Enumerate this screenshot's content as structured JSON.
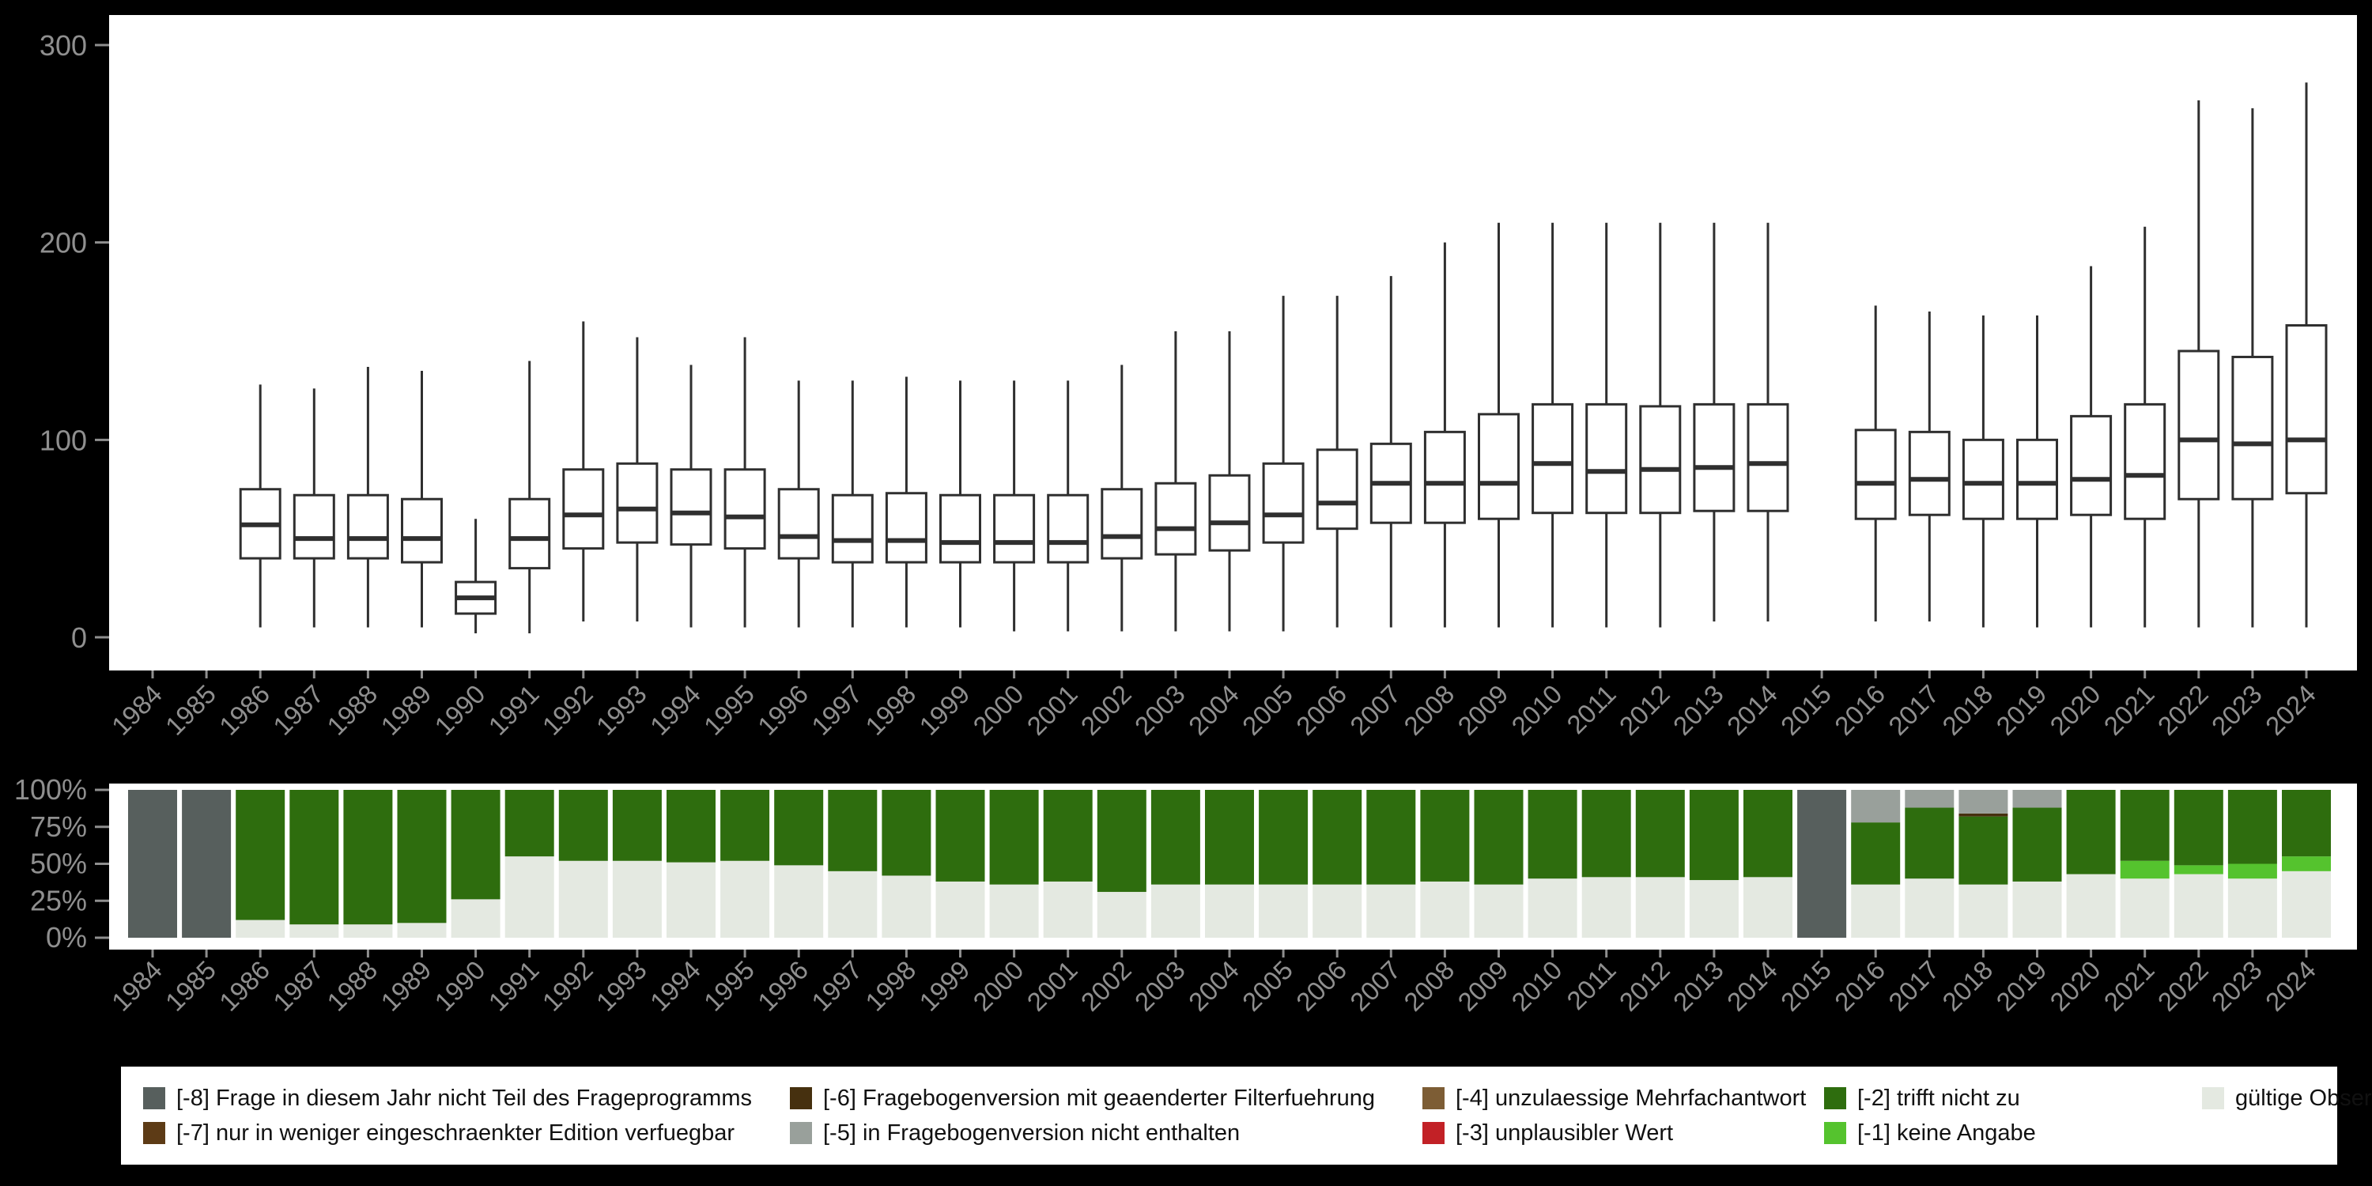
{
  "colors": {
    "background": "#000000",
    "panel": "#ffffff",
    "axis_text": "#8f8f8f",
    "box_stroke": "#2f2f2f",
    "legend_text": "#111111"
  },
  "legend": {
    "rows": [
      [
        {
          "label": "[-8] Frage in diesem Jahr nicht Teil des Frageprogramms",
          "color": "#575f5d"
        },
        {
          "label": "[-6] Fragebogenversion mit geaenderter Filterfuehrung",
          "color": "#46300f"
        },
        {
          "label": "[-4] unzulaessige Mehrfachantwort",
          "color": "#7d5d35"
        },
        {
          "label": "[-2] trifft nicht zu",
          "color": "#2e6d0e"
        },
        {
          "label": "gültige Observationen",
          "color": "#e4e9e1"
        }
      ],
      [
        {
          "label": "[-7] nur in weniger eingeschraenkter Edition verfuegbar",
          "color": "#5d3b16"
        },
        {
          "label": "[-5] in Fragebogenversion nicht enthalten",
          "color": "#99a09b"
        },
        {
          "label": "[-3] unplausibler Wert",
          "color": "#c22126"
        },
        {
          "label": "[-1] keine Angabe",
          "color": "#55c32e"
        }
      ]
    ]
  },
  "chart_data": [
    {
      "type": "boxplot",
      "title": "",
      "xlabel": "",
      "ylabel": "",
      "ylim": [
        0,
        300
      ],
      "yticks": [
        0,
        100,
        200,
        300
      ],
      "grid": false,
      "categories": [
        "1984",
        "1985",
        "1986",
        "1987",
        "1988",
        "1989",
        "1990",
        "1991",
        "1992",
        "1993",
        "1994",
        "1995",
        "1996",
        "1997",
        "1998",
        "1999",
        "2000",
        "2001",
        "2002",
        "2003",
        "2004",
        "2005",
        "2006",
        "2007",
        "2008",
        "2009",
        "2010",
        "2011",
        "2012",
        "2013",
        "2014",
        "2015",
        "2016",
        "2017",
        "2018",
        "2019",
        "2020",
        "2021",
        "2022",
        "2023",
        "2024"
      ],
      "boxes": [
        null,
        null,
        {
          "low": 5,
          "q1": 40,
          "median": 57,
          "q3": 75,
          "high": 128
        },
        {
          "low": 5,
          "q1": 40,
          "median": 50,
          "q3": 72,
          "high": 126
        },
        {
          "low": 5,
          "q1": 40,
          "median": 50,
          "q3": 72,
          "high": 137
        },
        {
          "low": 5,
          "q1": 38,
          "median": 50,
          "q3": 70,
          "high": 135
        },
        {
          "low": 2,
          "q1": 12,
          "median": 20,
          "q3": 28,
          "high": 60
        },
        {
          "low": 2,
          "q1": 35,
          "median": 50,
          "q3": 70,
          "high": 140
        },
        {
          "low": 8,
          "q1": 45,
          "median": 62,
          "q3": 85,
          "high": 160
        },
        {
          "low": 8,
          "q1": 48,
          "median": 65,
          "q3": 88,
          "high": 152
        },
        {
          "low": 5,
          "q1": 47,
          "median": 63,
          "q3": 85,
          "high": 138
        },
        {
          "low": 5,
          "q1": 45,
          "median": 61,
          "q3": 85,
          "high": 152
        },
        {
          "low": 5,
          "q1": 40,
          "median": 51,
          "q3": 75,
          "high": 130
        },
        {
          "low": 5,
          "q1": 38,
          "median": 49,
          "q3": 72,
          "high": 130
        },
        {
          "low": 5,
          "q1": 38,
          "median": 49,
          "q3": 73,
          "high": 132
        },
        {
          "low": 5,
          "q1": 38,
          "median": 48,
          "q3": 72,
          "high": 130
        },
        {
          "low": 3,
          "q1": 38,
          "median": 48,
          "q3": 72,
          "high": 130
        },
        {
          "low": 3,
          "q1": 38,
          "median": 48,
          "q3": 72,
          "high": 130
        },
        {
          "low": 3,
          "q1": 40,
          "median": 51,
          "q3": 75,
          "high": 138
        },
        {
          "low": 3,
          "q1": 42,
          "median": 55,
          "q3": 78,
          "high": 155
        },
        {
          "low": 3,
          "q1": 44,
          "median": 58,
          "q3": 82,
          "high": 155
        },
        {
          "low": 3,
          "q1": 48,
          "median": 62,
          "q3": 88,
          "high": 173
        },
        {
          "low": 5,
          "q1": 55,
          "median": 68,
          "q3": 95,
          "high": 173
        },
        {
          "low": 5,
          "q1": 58,
          "median": 78,
          "q3": 98,
          "high": 183
        },
        {
          "low": 5,
          "q1": 58,
          "median": 78,
          "q3": 104,
          "high": 200
        },
        {
          "low": 5,
          "q1": 60,
          "median": 78,
          "q3": 113,
          "high": 210
        },
        {
          "low": 5,
          "q1": 63,
          "median": 88,
          "q3": 118,
          "high": 210
        },
        {
          "low": 5,
          "q1": 63,
          "median": 84,
          "q3": 118,
          "high": 210
        },
        {
          "low": 5,
          "q1": 63,
          "median": 85,
          "q3": 117,
          "high": 210
        },
        {
          "low": 8,
          "q1": 64,
          "median": 86,
          "q3": 118,
          "high": 210
        },
        {
          "low": 8,
          "q1": 64,
          "median": 88,
          "q3": 118,
          "high": 210
        },
        null,
        {
          "low": 8,
          "q1": 60,
          "median": 78,
          "q3": 105,
          "high": 168
        },
        {
          "low": 8,
          "q1": 62,
          "median": 80,
          "q3": 104,
          "high": 165
        },
        {
          "low": 5,
          "q1": 60,
          "median": 78,
          "q3": 100,
          "high": 163
        },
        {
          "low": 5,
          "q1": 60,
          "median": 78,
          "q3": 100,
          "high": 163
        },
        {
          "low": 5,
          "q1": 62,
          "median": 80,
          "q3": 112,
          "high": 188
        },
        {
          "low": 5,
          "q1": 60,
          "median": 82,
          "q3": 118,
          "high": 208
        },
        {
          "low": 5,
          "q1": 70,
          "median": 100,
          "q3": 145,
          "high": 272
        },
        {
          "low": 5,
          "q1": 70,
          "median": 98,
          "q3": 142,
          "high": 268
        },
        {
          "low": 5,
          "q1": 73,
          "median": 100,
          "q3": 158,
          "high": 281
        }
      ]
    },
    {
      "type": "bar",
      "stacked": true,
      "percent": true,
      "title": "",
      "xlabel": "",
      "ylabel": "",
      "ytick_values": [
        0,
        25,
        50,
        75,
        100
      ],
      "ytick_labels": [
        "0%",
        "25%",
        "50%",
        "75%",
        "100%"
      ],
      "categories": [
        "1984",
        "1985",
        "1986",
        "1987",
        "1988",
        "1989",
        "1990",
        "1991",
        "1992",
        "1993",
        "1994",
        "1995",
        "1996",
        "1997",
        "1998",
        "1999",
        "2000",
        "2001",
        "2002",
        "2003",
        "2004",
        "2005",
        "2006",
        "2007",
        "2008",
        "2009",
        "2010",
        "2011",
        "2012",
        "2013",
        "2014",
        "2015",
        "2016",
        "2017",
        "2018",
        "2019",
        "2020",
        "2021",
        "2022",
        "2023",
        "2024"
      ],
      "series": [
        {
          "name": "gültige Observationen",
          "color": "#e4e9e1",
          "values": [
            0,
            0,
            12,
            9,
            9,
            10,
            26,
            55,
            52,
            52,
            51,
            52,
            49,
            45,
            42,
            38,
            36,
            38,
            31,
            36,
            36,
            36,
            36,
            36,
            38,
            36,
            40,
            41,
            41,
            39,
            41,
            0,
            36,
            40,
            36,
            38,
            43,
            40,
            43,
            40,
            45
          ]
        },
        {
          "name": "[-1] keine Angabe",
          "color": "#55c32e",
          "values": [
            0,
            0,
            0,
            0,
            0,
            0,
            0,
            0,
            0,
            0,
            0,
            0,
            0,
            0,
            0,
            0,
            0,
            0,
            0,
            0,
            0,
            0,
            0,
            0,
            0,
            0,
            0,
            0,
            0,
            0,
            0,
            0,
            0,
            0,
            0,
            0,
            0,
            12,
            6,
            10,
            10
          ]
        },
        {
          "name": "[-2] trifft nicht zu",
          "color": "#2e6d0e",
          "values": [
            0,
            0,
            88,
            91,
            91,
            90,
            74,
            45,
            48,
            48,
            49,
            48,
            51,
            55,
            58,
            62,
            64,
            62,
            69,
            64,
            64,
            64,
            64,
            64,
            62,
            64,
            60,
            59,
            59,
            61,
            59,
            0,
            42,
            48,
            46,
            50,
            57,
            48,
            51,
            50,
            45
          ]
        },
        {
          "name": "[-6] Fragebogenversion mit geaenderter Filterfuehrung",
          "color": "#46300f",
          "values": [
            0,
            0,
            0,
            0,
            0,
            0,
            0,
            0,
            0,
            0,
            0,
            0,
            0,
            0,
            0,
            0,
            0,
            0,
            0,
            0,
            0,
            0,
            0,
            0,
            0,
            0,
            0,
            0,
            0,
            0,
            0,
            0,
            0,
            0,
            2,
            0,
            0,
            0,
            0,
            0,
            0
          ]
        },
        {
          "name": "[-5] in Fragebogenversion nicht enthalten",
          "color": "#99a09b",
          "values": [
            0,
            0,
            0,
            0,
            0,
            0,
            0,
            0,
            0,
            0,
            0,
            0,
            0,
            0,
            0,
            0,
            0,
            0,
            0,
            0,
            0,
            0,
            0,
            0,
            0,
            0,
            0,
            0,
            0,
            0,
            0,
            0,
            22,
            12,
            16,
            12,
            0,
            0,
            0,
            0,
            0
          ]
        },
        {
          "name": "[-8] Frage in diesem Jahr nicht Teil des Frageprogramms",
          "color": "#575f5d",
          "values": [
            100,
            100,
            0,
            0,
            0,
            0,
            0,
            0,
            0,
            0,
            0,
            0,
            0,
            0,
            0,
            0,
            0,
            0,
            0,
            0,
            0,
            0,
            0,
            0,
            0,
            0,
            0,
            0,
            0,
            0,
            0,
            100,
            0,
            0,
            0,
            0,
            0,
            0,
            0,
            0,
            0
          ]
        }
      ]
    }
  ]
}
